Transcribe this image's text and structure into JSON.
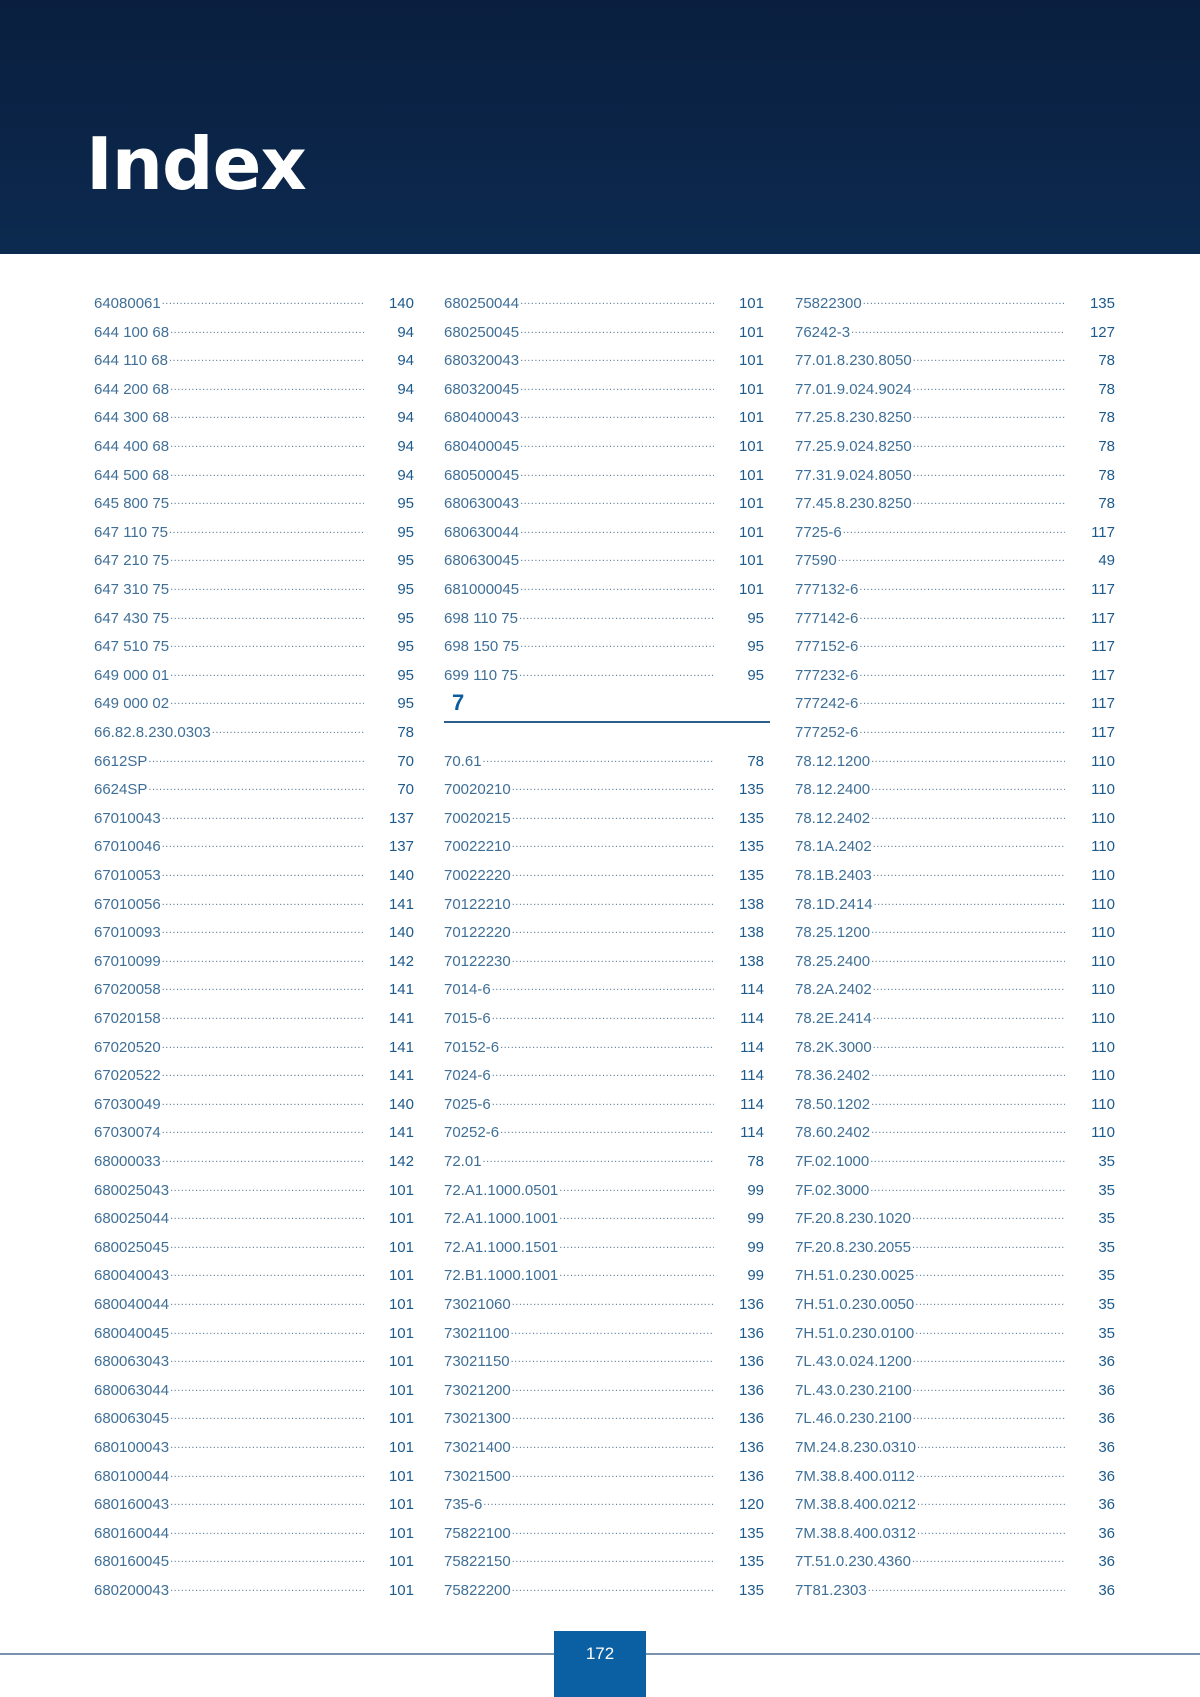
{
  "header": {
    "title": "Index",
    "background": "#0b2548"
  },
  "colors": {
    "entry_text": "#3f6f97",
    "page_number": "#1d5a8c",
    "accent": "#0a60a3"
  },
  "columns": [
    {
      "entries": [
        {
          "code": "64080061",
          "page": "140"
        },
        {
          "code": "644 100 68",
          "page": "94"
        },
        {
          "code": "644 110 68",
          "page": "94"
        },
        {
          "code": "644 200 68",
          "page": "94"
        },
        {
          "code": "644 300 68",
          "page": "94"
        },
        {
          "code": "644 400 68",
          "page": "94"
        },
        {
          "code": "644 500 68",
          "page": "94"
        },
        {
          "code": "645 800 75",
          "page": "95"
        },
        {
          "code": "647 110 75",
          "page": "95"
        },
        {
          "code": "647 210 75",
          "page": "95"
        },
        {
          "code": "647 310 75",
          "page": "95"
        },
        {
          "code": "647 430 75",
          "page": "95"
        },
        {
          "code": "647 510 75",
          "page": "95"
        },
        {
          "code": "649 000 01",
          "page": "95"
        },
        {
          "code": "649 000 02",
          "page": "95"
        },
        {
          "code": "66.82.8.230.0303",
          "page": "78"
        },
        {
          "code": "6612SP",
          "page": "70"
        },
        {
          "code": "6624SP",
          "page": "70"
        },
        {
          "code": "67010043",
          "page": "137"
        },
        {
          "code": "67010046",
          "page": "137"
        },
        {
          "code": "67010053",
          "page": "140"
        },
        {
          "code": "67010056",
          "page": "141"
        },
        {
          "code": "67010093",
          "page": "140"
        },
        {
          "code": "67010099",
          "page": "142"
        },
        {
          "code": "67020058",
          "page": "141"
        },
        {
          "code": "67020158",
          "page": "141"
        },
        {
          "code": "67020520",
          "page": "141"
        },
        {
          "code": "67020522",
          "page": "141"
        },
        {
          "code": "67030049",
          "page": "140"
        },
        {
          "code": "67030074",
          "page": "141"
        },
        {
          "code": "68000033",
          "page": "142"
        },
        {
          "code": "680025043",
          "page": "101"
        },
        {
          "code": "680025044",
          "page": "101"
        },
        {
          "code": "680025045",
          "page": "101"
        },
        {
          "code": "680040043",
          "page": "101"
        },
        {
          "code": "680040044",
          "page": "101"
        },
        {
          "code": "680040045",
          "page": "101"
        },
        {
          "code": "680063043",
          "page": "101"
        },
        {
          "code": "680063044",
          "page": "101"
        },
        {
          "code": "680063045",
          "page": "101"
        },
        {
          "code": "680100043",
          "page": "101"
        },
        {
          "code": "680100044",
          "page": "101"
        },
        {
          "code": "680160043",
          "page": "101"
        },
        {
          "code": "680160044",
          "page": "101"
        },
        {
          "code": "680160045",
          "page": "101"
        },
        {
          "code": "680200043",
          "page": "101"
        }
      ]
    },
    {
      "entries": [
        {
          "code": "680250044",
          "page": "101"
        },
        {
          "code": "680250045",
          "page": "101"
        },
        {
          "code": "680320043",
          "page": "101"
        },
        {
          "code": "680320045",
          "page": "101"
        },
        {
          "code": "680400043",
          "page": "101"
        },
        {
          "code": "680400045",
          "page": "101"
        },
        {
          "code": "680500045",
          "page": "101"
        },
        {
          "code": "680630043",
          "page": "101"
        },
        {
          "code": "680630044",
          "page": "101"
        },
        {
          "code": "680630045",
          "page": "101"
        },
        {
          "code": "681000045",
          "page": "101"
        },
        {
          "code": "698 110 75",
          "page": "95"
        },
        {
          "code": "698 150 75",
          "page": "95"
        },
        {
          "code": "699 110 75",
          "page": "95"
        }
      ],
      "section_heading": "7",
      "section_entries": [
        {
          "code": "70.61",
          "page": "78"
        },
        {
          "code": "70020210",
          "page": "135"
        },
        {
          "code": "70020215",
          "page": "135"
        },
        {
          "code": "70022210",
          "page": "135"
        },
        {
          "code": "70022220",
          "page": "135"
        },
        {
          "code": "70122210",
          "page": "138"
        },
        {
          "code": "70122220",
          "page": "138"
        },
        {
          "code": "70122230",
          "page": "138"
        },
        {
          "code": "7014-6",
          "page": "114"
        },
        {
          "code": "7015-6",
          "page": "114"
        },
        {
          "code": "70152-6",
          "page": "114"
        },
        {
          "code": "7024-6",
          "page": "114"
        },
        {
          "code": "7025-6",
          "page": "114"
        },
        {
          "code": "70252-6",
          "page": "114"
        },
        {
          "code": "72.01",
          "page": "78"
        },
        {
          "code": "72.A1.1000.0501",
          "page": "99"
        },
        {
          "code": "72.A1.1000.1001",
          "page": "99"
        },
        {
          "code": "72.A1.1000.1501",
          "page": "99"
        },
        {
          "code": "72.B1.1000.1001",
          "page": "99"
        },
        {
          "code": "73021060",
          "page": "136"
        },
        {
          "code": "73021100",
          "page": "136"
        },
        {
          "code": "73021150",
          "page": "136"
        },
        {
          "code": "73021200",
          "page": "136"
        },
        {
          "code": "73021300",
          "page": "136"
        },
        {
          "code": "73021400",
          "page": "136"
        },
        {
          "code": "73021500",
          "page": "136"
        },
        {
          "code": "735-6",
          "page": "120"
        },
        {
          "code": "75822100",
          "page": "135"
        },
        {
          "code": "75822150",
          "page": "135"
        },
        {
          "code": "75822200",
          "page": "135"
        }
      ]
    },
    {
      "entries": [
        {
          "code": "75822300",
          "page": "135"
        },
        {
          "code": "76242-3",
          "page": "127"
        },
        {
          "code": "77.01.8.230.8050",
          "page": "78"
        },
        {
          "code": "77.01.9.024.9024",
          "page": "78"
        },
        {
          "code": "77.25.8.230.8250",
          "page": "78"
        },
        {
          "code": "77.25.9.024.8250",
          "page": "78"
        },
        {
          "code": "77.31.9.024.8050",
          "page": "78"
        },
        {
          "code": "77.45.8.230.8250",
          "page": "78"
        },
        {
          "code": "7725-6",
          "page": "117"
        },
        {
          "code": "77590",
          "page": "49"
        },
        {
          "code": "777132-6",
          "page": "117"
        },
        {
          "code": "777142-6",
          "page": "117"
        },
        {
          "code": "777152-6",
          "page": "117"
        },
        {
          "code": "777232-6",
          "page": "117"
        },
        {
          "code": "777242-6",
          "page": "117"
        },
        {
          "code": "777252-6",
          "page": "117"
        },
        {
          "code": "78.12.1200",
          "page": "110"
        },
        {
          "code": "78.12.2400",
          "page": "110"
        },
        {
          "code": "78.12.2402",
          "page": "110"
        },
        {
          "code": "78.1A.2402",
          "page": "110"
        },
        {
          "code": "78.1B.2403",
          "page": "110"
        },
        {
          "code": "78.1D.2414",
          "page": "110"
        },
        {
          "code": "78.25.1200",
          "page": "110"
        },
        {
          "code": "78.25.2400",
          "page": "110"
        },
        {
          "code": "78.2A.2402",
          "page": "110"
        },
        {
          "code": "78.2E.2414",
          "page": "110"
        },
        {
          "code": "78.2K.3000",
          "page": "110"
        },
        {
          "code": "78.36.2402",
          "page": "110"
        },
        {
          "code": "78.50.1202",
          "page": "110"
        },
        {
          "code": "78.60.2402",
          "page": "110"
        },
        {
          "code": "7F.02.1000",
          "page": "35"
        },
        {
          "code": "7F.02.3000",
          "page": "35"
        },
        {
          "code": "7F.20.8.230.1020",
          "page": "35"
        },
        {
          "code": "7F.20.8.230.2055",
          "page": "35"
        },
        {
          "code": "7H.51.0.230.0025",
          "page": "35"
        },
        {
          "code": "7H.51.0.230.0050",
          "page": "35"
        },
        {
          "code": "7H.51.0.230.0100",
          "page": "35"
        },
        {
          "code": "7L.43.0.024.1200",
          "page": "36"
        },
        {
          "code": "7L.43.0.230.2100",
          "page": "36"
        },
        {
          "code": "7L.46.0.230.2100",
          "page": "36"
        },
        {
          "code": "7M.24.8.230.0310",
          "page": "36"
        },
        {
          "code": "7M.38.8.400.0112",
          "page": "36"
        },
        {
          "code": "7M.38.8.400.0212",
          "page": "36"
        },
        {
          "code": "7M.38.8.400.0312",
          "page": "36"
        },
        {
          "code": "7T.51.0.230.4360",
          "page": "36"
        },
        {
          "code": "7T81.2303",
          "page": "36"
        }
      ]
    }
  ],
  "footer": {
    "page_number": "172"
  }
}
